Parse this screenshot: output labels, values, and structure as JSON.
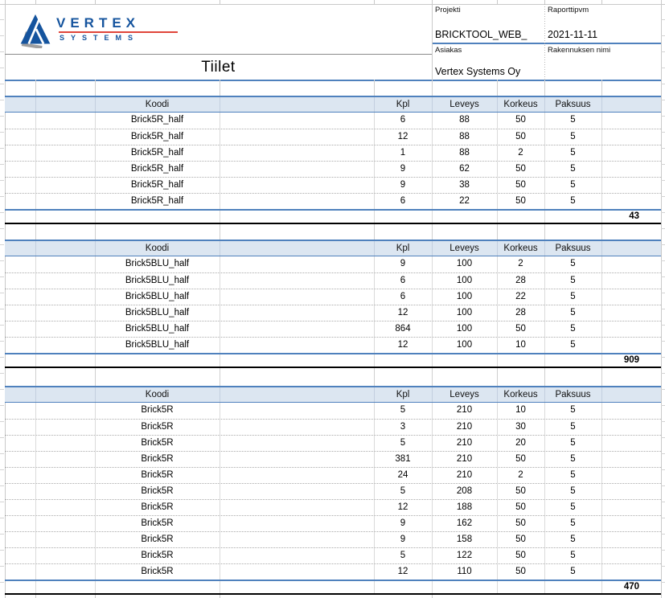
{
  "report": {
    "logo": {
      "brand": "VERTEX",
      "subtitle": "SYSTEMS"
    },
    "title": "Tiilet",
    "fields": {
      "projekti": {
        "label": "Projekti",
        "value": "BRICKTOOL_WEB_"
      },
      "raporttipvm": {
        "label": "Raporttipvm",
        "value": "2021-11-11"
      },
      "asiakas": {
        "label": "Asiakas",
        "value": "Vertex Systems Oy"
      },
      "rakennuksen_nimi": {
        "label": "Rakennuksen nimi",
        "value": ""
      }
    }
  },
  "columns": [
    "Koodi",
    "Kpl",
    "Leveys",
    "Korkeus",
    "Paksuus"
  ],
  "tables": [
    {
      "rows": [
        [
          "Brick5R_half",
          6,
          88,
          50,
          5
        ],
        [
          "Brick5R_half",
          12,
          88,
          50,
          5
        ],
        [
          "Brick5R_half",
          1,
          88,
          2,
          5
        ],
        [
          "Brick5R_half",
          9,
          62,
          50,
          5
        ],
        [
          "Brick5R_half",
          9,
          38,
          50,
          5
        ],
        [
          "Brick5R_half",
          6,
          22,
          50,
          5
        ]
      ],
      "total": 43
    },
    {
      "rows": [
        [
          "Brick5BLU_half",
          9,
          100,
          2,
          5
        ],
        [
          "Brick5BLU_half",
          6,
          100,
          28,
          5
        ],
        [
          "Brick5BLU_half",
          6,
          100,
          22,
          5
        ],
        [
          "Brick5BLU_half",
          12,
          100,
          28,
          5
        ],
        [
          "Brick5BLU_half",
          864,
          100,
          50,
          5
        ],
        [
          "Brick5BLU_half",
          12,
          100,
          10,
          5
        ]
      ],
      "total": 909
    },
    {
      "rows": [
        [
          "Brick5R",
          5,
          210,
          10,
          5
        ],
        [
          "Brick5R",
          3,
          210,
          30,
          5
        ],
        [
          "Brick5R",
          5,
          210,
          20,
          5
        ],
        [
          "Brick5R",
          381,
          210,
          50,
          5
        ],
        [
          "Brick5R",
          24,
          210,
          2,
          5
        ],
        [
          "Brick5R",
          5,
          208,
          50,
          5
        ],
        [
          "Brick5R",
          12,
          188,
          50,
          5
        ],
        [
          "Brick5R",
          9,
          162,
          50,
          5
        ],
        [
          "Brick5R",
          9,
          158,
          50,
          5
        ],
        [
          "Brick5R",
          5,
          122,
          50,
          5
        ],
        [
          "Brick5R",
          12,
          110,
          50,
          5
        ]
      ],
      "total": 470
    }
  ],
  "colors": {
    "accent_blue": "#4F81BD",
    "header_fill": "#DCE6F1",
    "logo_blue": "#15549E",
    "logo_red": "#E0453A",
    "grid_gray": "#C9C9C9",
    "total_border_black": "#000000"
  }
}
